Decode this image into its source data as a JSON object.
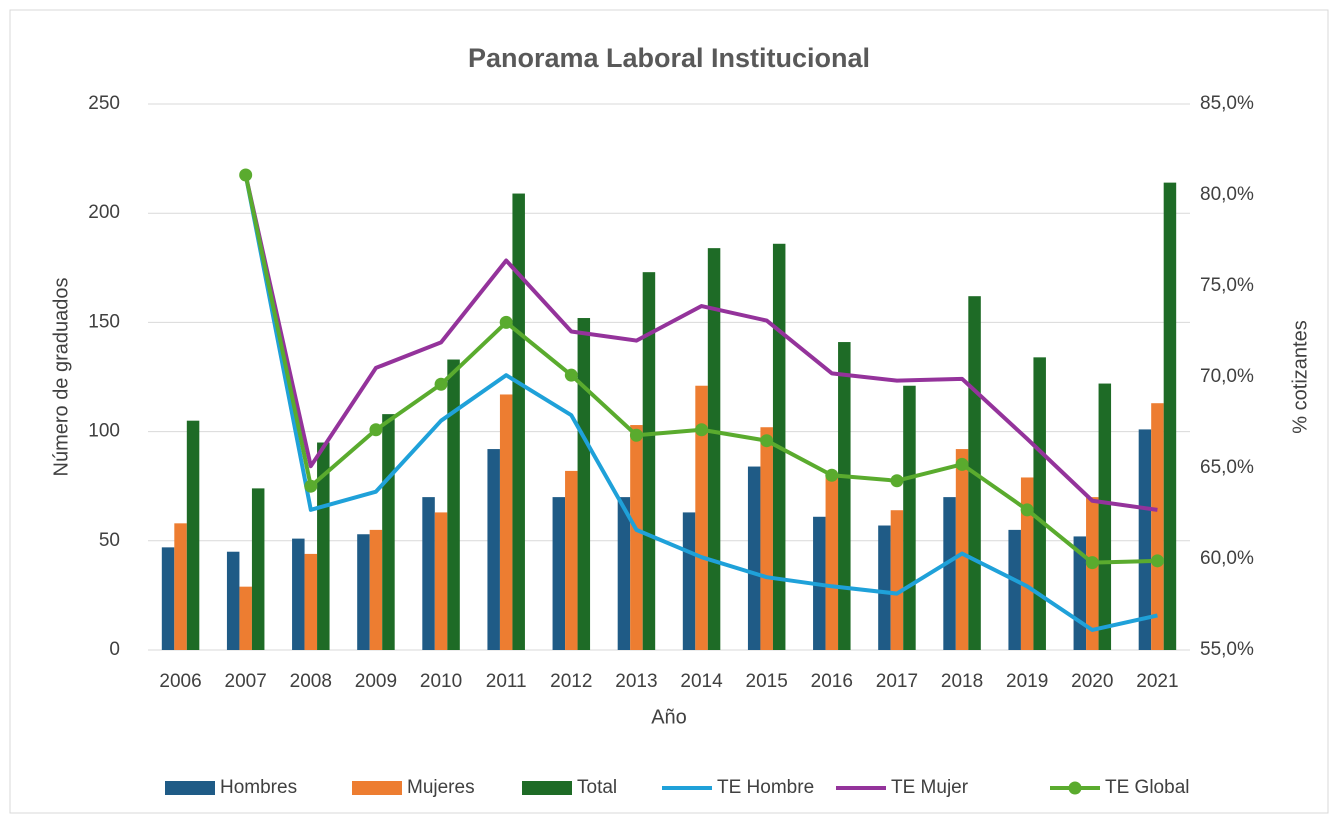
{
  "chart_data": {
    "type": "bar",
    "title": "Panorama Laboral Institucional",
    "x_label": "Año",
    "y_label": "Número de graduados",
    "y2_label": "% cotizantes",
    "categories": [
      "2006",
      "2007",
      "2008",
      "2009",
      "2010",
      "2011",
      "2012",
      "2013",
      "2014",
      "2015",
      "2016",
      "2017",
      "2018",
      "2019",
      "2020",
      "2021"
    ],
    "ylim": [
      0,
      250
    ],
    "yticks": [
      0,
      50,
      100,
      150,
      200,
      250
    ],
    "y2lim": [
      55,
      85
    ],
    "y2ticks": [
      {
        "value": 55,
        "label": "55,0%"
      },
      {
        "value": 60,
        "label": "60,0%"
      },
      {
        "value": 65,
        "label": "65,0%"
      },
      {
        "value": 70,
        "label": "70,0%"
      },
      {
        "value": 75,
        "label": "75,0%"
      },
      {
        "value": 80,
        "label": "80,0%"
      },
      {
        "value": 85,
        "label": "85,0%"
      }
    ],
    "grid": true,
    "legend": "bottom",
    "series": [
      {
        "name": "Hombres",
        "type": "bar",
        "color": "#1f5b86",
        "values": [
          47,
          45,
          51,
          53,
          70,
          92,
          70,
          70,
          63,
          84,
          61,
          57,
          70,
          55,
          52,
          101
        ]
      },
      {
        "name": "Mujeres",
        "type": "bar",
        "color": "#ed7d31",
        "values": [
          58,
          29,
          44,
          55,
          63,
          117,
          82,
          103,
          121,
          102,
          80,
          64,
          92,
          79,
          70,
          113
        ]
      },
      {
        "name": "Total",
        "type": "bar",
        "color": "#1e6b26",
        "values": [
          105,
          74,
          95,
          108,
          133,
          209,
          152,
          173,
          184,
          186,
          141,
          121,
          162,
          134,
          122,
          214
        ]
      },
      {
        "name": "TE Hombre",
        "type": "line",
        "axis": "y2",
        "color": "#1fa1d9",
        "marker": false,
        "values": [
          null,
          81.1,
          62.7,
          63.7,
          67.6,
          70.1,
          67.9,
          61.6,
          60.1,
          59.0,
          58.5,
          58.1,
          60.3,
          58.5,
          56.1,
          56.9
        ]
      },
      {
        "name": "TE Mujer",
        "type": "line",
        "axis": "y2",
        "color": "#94339b",
        "marker": false,
        "values": [
          null,
          81.1,
          65.1,
          70.5,
          71.9,
          76.4,
          72.5,
          72.0,
          73.9,
          73.1,
          70.2,
          69.8,
          69.9,
          66.6,
          63.2,
          62.7
        ]
      },
      {
        "name": "TE Global",
        "type": "line",
        "axis": "y2",
        "color": "#5aab2e",
        "marker": true,
        "values": [
          null,
          81.1,
          64.0,
          67.1,
          69.6,
          73.0,
          70.1,
          66.8,
          67.1,
          66.5,
          64.6,
          64.3,
          65.2,
          62.7,
          59.8,
          59.9
        ]
      }
    ]
  }
}
